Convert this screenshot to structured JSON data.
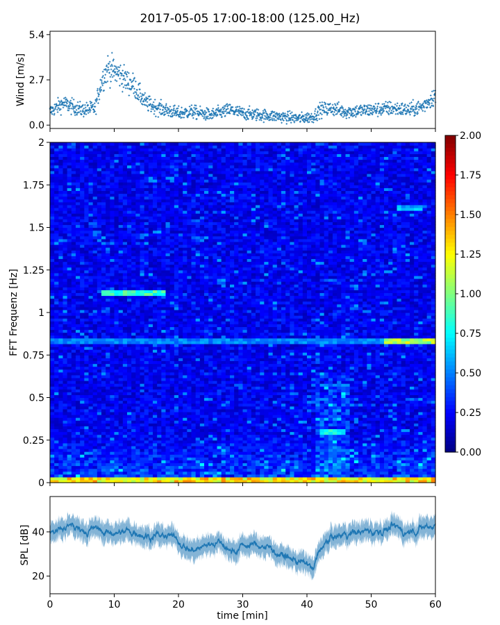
{
  "figure": {
    "title": "2017-05-05 17:00-18:00 (125.00_Hz)"
  },
  "chart_data": [
    {
      "type": "scatter",
      "panel": "wind",
      "ylabel": "Wind [m/s]",
      "xlabel": "",
      "xlim": [
        0,
        60
      ],
      "ylim": [
        -0.2,
        5.6
      ],
      "yticks": [
        0.0,
        2.7,
        5.4
      ],
      "ytick_labels": [
        "0.0",
        "2.7",
        "5.4"
      ],
      "xticks": [
        0,
        10,
        20,
        30,
        40,
        50,
        60
      ],
      "color": "#1f77b4",
      "keypoints": {
        "x": [
          0,
          2,
          5,
          7,
          8,
          9,
          10,
          11,
          12,
          13,
          14,
          15,
          17,
          20,
          22,
          25,
          28,
          30,
          33,
          36,
          39,
          41,
          42,
          44,
          46,
          50,
          53,
          56,
          58,
          60
        ],
        "y": [
          0.8,
          1.3,
          0.9,
          1.0,
          2.6,
          3.4,
          3.2,
          3.0,
          2.6,
          2.4,
          1.8,
          1.3,
          1.0,
          0.7,
          0.8,
          0.6,
          0.9,
          0.7,
          0.6,
          0.5,
          0.4,
          0.5,
          0.9,
          1.0,
          0.8,
          0.9,
          1.0,
          0.9,
          1.1,
          1.8
        ]
      }
    },
    {
      "type": "heatmap",
      "panel": "spectrogram",
      "ylabel": "FFT Frequenz [Hz]",
      "xlabel": "",
      "xlim": [
        0,
        60
      ],
      "ylim": [
        0,
        2
      ],
      "yticks": [
        0,
        0.25,
        0.5,
        0.75,
        1,
        1.25,
        1.5,
        1.75,
        2
      ],
      "ytick_labels": [
        "0",
        "0.25",
        "0.5",
        "0.75",
        "1",
        "1.25",
        "1.5",
        "1.75",
        "2"
      ],
      "colormap": "jet",
      "colorbar": {
        "vmin": 0,
        "vmax": 2,
        "ticks": [
          0.0,
          0.25,
          0.5,
          0.75,
          1.0,
          1.25,
          1.5,
          1.75,
          2.0
        ],
        "tick_labels": [
          "0.00",
          "0.25",
          "0.50",
          "0.75",
          "1.00",
          "1.25",
          "1.50",
          "1.75",
          "2.00"
        ]
      },
      "features": [
        {
          "t": [
            8,
            18
          ],
          "f": 1.12,
          "value": 1.0
        },
        {
          "t": [
            0,
            60
          ],
          "f": 0.83,
          "value": 0.6
        },
        {
          "t": [
            52,
            60
          ],
          "f": 0.83,
          "value": 1.3
        },
        {
          "t": [
            54,
            58
          ],
          "f": 1.62,
          "value": 0.7
        },
        {
          "t": [
            42,
            46
          ],
          "f": 0.3,
          "value": 0.9
        },
        {
          "t": [
            0,
            60
          ],
          "f": 0.02,
          "value": 1.5
        }
      ]
    },
    {
      "type": "line",
      "panel": "spl",
      "ylabel": "SPL [dB]",
      "xlabel": "time [min]",
      "xlim": [
        0,
        60
      ],
      "ylim": [
        12,
        56
      ],
      "yticks": [
        20,
        40
      ],
      "ytick_labels": [
        "20",
        "40"
      ],
      "xticks": [
        0,
        10,
        20,
        30,
        40,
        50,
        60
      ],
      "xtick_labels": [
        "0",
        "10",
        "20",
        "30",
        "40",
        "50",
        "60"
      ],
      "color": "#1f77b4",
      "keypoints": {
        "x": [
          0,
          3,
          6,
          9,
          12,
          15,
          18,
          20,
          22,
          24,
          26,
          28,
          30,
          33,
          36,
          38,
          40,
          41,
          42,
          44,
          47,
          50,
          53,
          56,
          58,
          60
        ],
        "y": [
          40,
          42,
          41,
          40,
          40,
          39,
          38,
          36,
          32,
          33,
          36,
          31,
          34,
          34,
          30,
          27,
          25,
          22,
          32,
          38,
          40,
          40,
          41,
          40,
          42,
          44
        ]
      }
    }
  ]
}
